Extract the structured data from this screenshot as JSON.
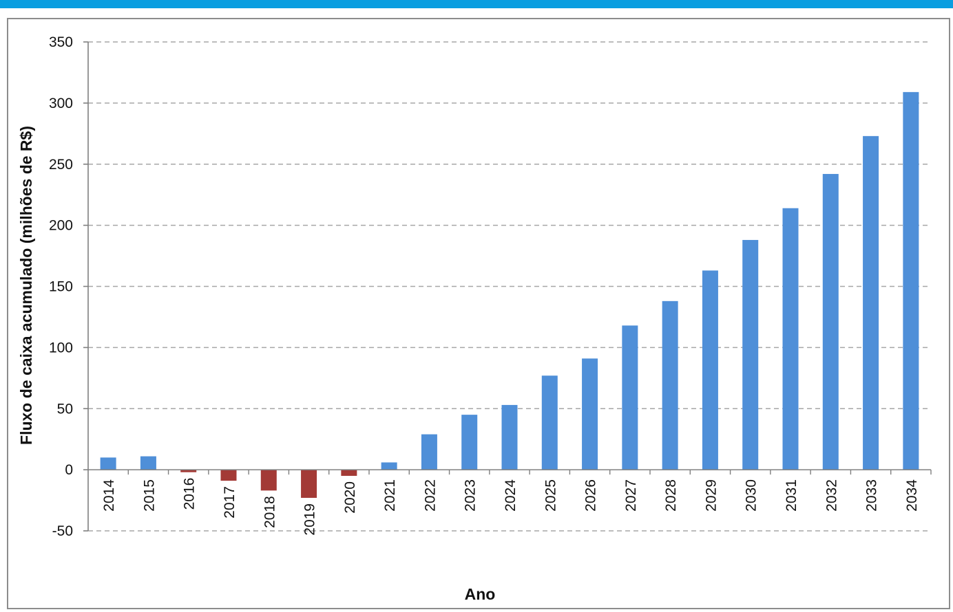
{
  "colors": {
    "top_band": "#0a9ee0",
    "positive_bar": "#4f8fd8",
    "negative_bar": "#a33a36",
    "gridline": "#a6a6a6",
    "axis": "#7f7f7f"
  },
  "chart_data": {
    "type": "bar",
    "title": "",
    "xlabel": "Ano",
    "ylabel": "Fluxo de caixa acumulado (milhões de R$)",
    "ylim": [
      -50,
      350
    ],
    "yticks": [
      350,
      300,
      250,
      200,
      150,
      100,
      50,
      0,
      -50
    ],
    "grid": true,
    "categories": [
      "2014",
      "2015",
      "2016",
      "2017",
      "2018",
      "2019",
      "2020",
      "2021",
      "2022",
      "2023",
      "2024",
      "2025",
      "2026",
      "2027",
      "2028",
      "2029",
      "2030",
      "2031",
      "2032",
      "2033",
      "2034"
    ],
    "values": [
      10,
      11,
      -2,
      -9,
      -17,
      -23,
      -5,
      6,
      29,
      45,
      53,
      77,
      91,
      118,
      138,
      163,
      188,
      214,
      242,
      273,
      309
    ]
  }
}
